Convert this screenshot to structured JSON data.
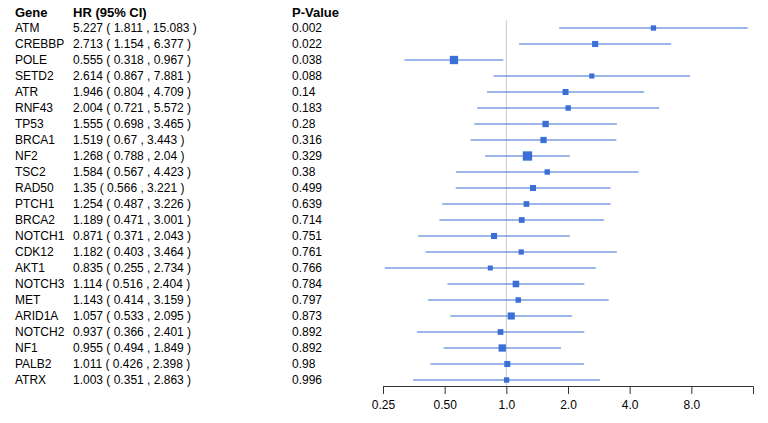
{
  "chart_data": {
    "type": "forest",
    "columns": [
      "Gene",
      "HR (95% CI)",
      "P-Value"
    ],
    "categories": [
      "ATM",
      "CREBBP",
      "POLE",
      "SETD2",
      "ATR",
      "RNF43",
      "TP53",
      "BRCA1",
      "NF2",
      "TSC2",
      "RAD50",
      "PTCH1",
      "BRCA2",
      "NOTCH1",
      "CDK12",
      "AKT1",
      "NOTCH3",
      "MET",
      "ARID1A",
      "NOTCH2",
      "NF1",
      "PALB2",
      "ATRX"
    ],
    "values": [
      5.227,
      2.713,
      0.555,
      2.614,
      1.946,
      2.004,
      1.555,
      1.519,
      1.268,
      1.584,
      1.35,
      1.254,
      1.189,
      0.871,
      1.182,
      0.835,
      1.114,
      1.143,
      1.057,
      0.937,
      0.955,
      1.011,
      1.003
    ],
    "lower": [
      1.811,
      1.154,
      0.318,
      0.867,
      0.804,
      0.721,
      0.698,
      0.67,
      0.788,
      0.567,
      0.566,
      0.487,
      0.471,
      0.371,
      0.403,
      0.255,
      0.516,
      0.414,
      0.533,
      0.366,
      0.494,
      0.426,
      0.351
    ],
    "upper": [
      15.083,
      6.377,
      0.967,
      7.881,
      4.709,
      5.572,
      3.465,
      3.443,
      2.04,
      4.423,
      3.221,
      3.226,
      3.001,
      2.043,
      3.464,
      2.734,
      2.404,
      3.159,
      2.095,
      2.401,
      1.849,
      2.398,
      2.863
    ],
    "value_labels": [
      "5.227 ( 1.811 , 15.083 )",
      "2.713 ( 1.154 , 6.377 )",
      "0.555 ( 0.318 , 0.967 )",
      "2.614 ( 0.867 , 7.881 )",
      "1.946 ( 0.804 , 4.709 )",
      "2.004 ( 0.721 , 5.572 )",
      "1.555 ( 0.698 , 3.465 )",
      "1.519 ( 0.67 , 3.443 )",
      "1.268 ( 0.788 , 2.04 )",
      "1.584 ( 0.567 , 4.423 )",
      "1.35 ( 0.566 , 3.221 )",
      "1.254 ( 0.487 , 3.226 )",
      "1.189 ( 0.471 , 3.001 )",
      "0.871 ( 0.371 , 2.043 )",
      "1.182 ( 0.403 , 3.464 )",
      "0.835 ( 0.255 , 2.734 )",
      "1.114 ( 0.516 , 2.404 )",
      "1.143 ( 0.414 , 3.159 )",
      "1.057 ( 0.533 , 2.095 )",
      "0.937 ( 0.366 , 2.401 )",
      "0.955 ( 0.494 , 1.849 )",
      "1.011 ( 0.426 , 2.398 )",
      "1.003 ( 0.351 , 2.863 )"
    ],
    "p_values": [
      0.002,
      0.022,
      0.038,
      0.088,
      0.14,
      0.183,
      0.28,
      0.316,
      0.329,
      0.38,
      0.499,
      0.639,
      0.714,
      0.751,
      0.761,
      0.766,
      0.784,
      0.797,
      0.873,
      0.892,
      0.892,
      0.98,
      0.996
    ],
    "reference_line": 1,
    "log": "x",
    "color": "#3b6fd6",
    "xlim": [
      0.25,
      16
    ],
    "xticks": [
      0.25,
      {
        "value": 0.5,
        "label": "0.50"
      },
      {
        "value": 1,
        "label": "1.0"
      },
      {
        "value": 2,
        "label": "2.0"
      },
      {
        "value": 4,
        "label": "4.0"
      },
      {
        "value": 8,
        "label": "8.0"
      }
    ]
  }
}
